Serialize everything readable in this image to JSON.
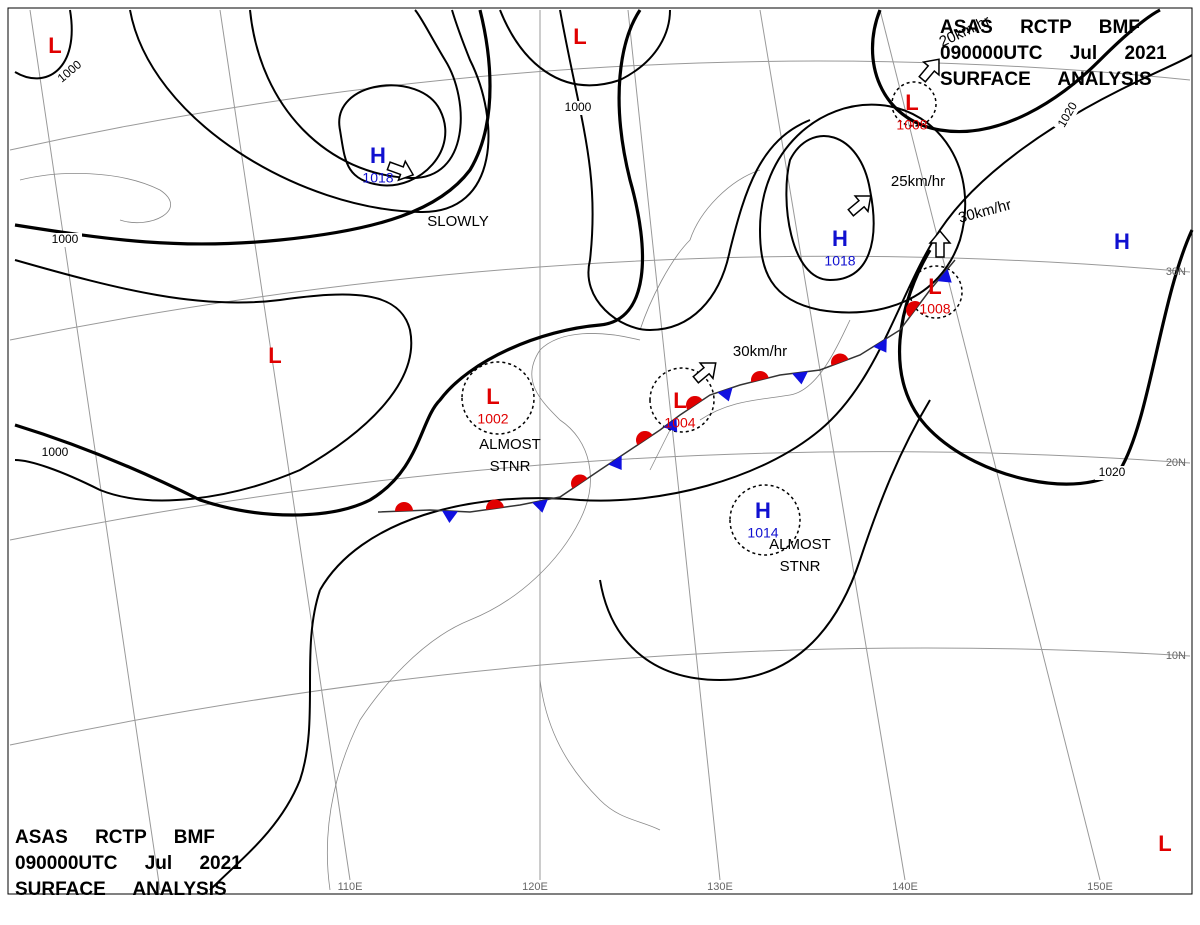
{
  "header_top": {
    "lines": [
      "ASAS RCTP BMF",
      "090000UTC Jul 2021",
      "SURFACE ANALYSIS"
    ]
  },
  "header_bottom": {
    "lines": [
      "ASAS RCTP BMF",
      "090000UTC Jul 2021",
      "SURFACE ANALYSIS"
    ]
  },
  "systems": [
    {
      "kind": "L"
    },
    {
      "kind": "L"
    },
    {
      "kind": "H",
      "pressure": "1018"
    },
    {
      "kind": "L",
      "pressure": "1008"
    },
    {
      "kind": "H",
      "pressure": "1018"
    },
    {
      "kind": "H"
    },
    {
      "kind": "L"
    },
    {
      "kind": "L",
      "pressure": "1002",
      "note": [
        "ALMOST",
        "STNR"
      ]
    },
    {
      "kind": "L",
      "pressure": "1004"
    },
    {
      "kind": "L",
      "pressure": "1008"
    },
    {
      "kind": "H",
      "pressure": "1014",
      "note": [
        "ALMOST",
        "STNR"
      ]
    },
    {
      "kind": "L"
    }
  ],
  "motions": [
    "SLOWLY",
    "30km/hr",
    "25km/hr",
    "30km/hr",
    "20km/hr"
  ],
  "isobar_labels": [
    "1000",
    "1000",
    "1000",
    "1000",
    "1020",
    "1020"
  ],
  "lat_labels": [
    "30N",
    "20N",
    "10N"
  ],
  "lon_labels": [
    "110E",
    "120E",
    "130E",
    "140E",
    "150E"
  ]
}
